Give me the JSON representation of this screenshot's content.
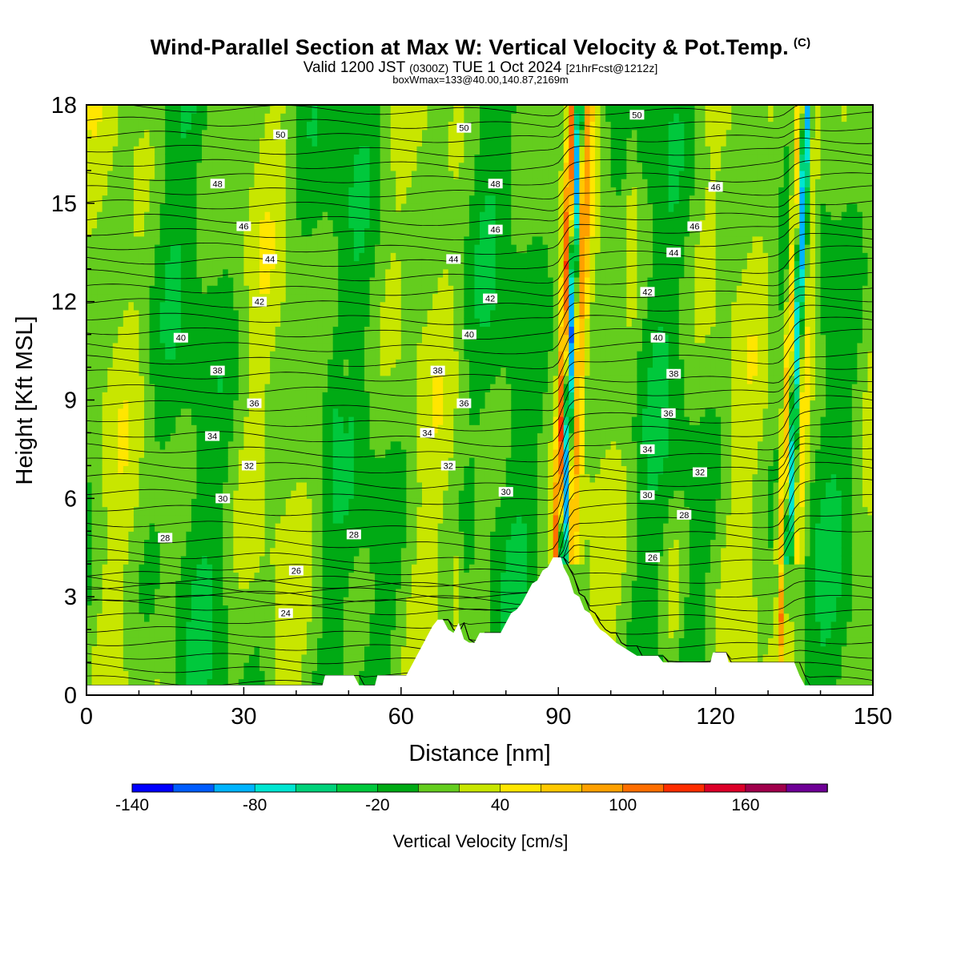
{
  "header": {
    "title": "Wind-Parallel Section at Max W: Vertical Velocity & Pot.Temp.",
    "title_mark": "(C)",
    "valid_prefix": "Valid 1200 JST",
    "valid_utc": "(0300Z)",
    "valid_date": "TUE 1 Oct 2024",
    "forecast": "[21hrFcst@1212z]",
    "box_info": "boxWmax=133@40.00,140.87,2169m"
  },
  "chart_data": {
    "type": "heatmap",
    "xlabel": "Distance [nm]",
    "ylabel": "Height [Kft MSL]",
    "xlim": [
      0,
      150
    ],
    "ylim": [
      0,
      18
    ],
    "x_ticks": [
      "0",
      "30",
      "60",
      "90",
      "120",
      "150"
    ],
    "y_ticks": [
      "0",
      "3",
      "6",
      "9",
      "12",
      "15",
      "18"
    ],
    "x_tick_values": [
      0,
      30,
      60,
      90,
      120,
      150
    ],
    "y_tick_values": [
      0,
      3,
      6,
      9,
      12,
      15,
      18
    ],
    "colorbar": {
      "label": "Vertical Velocity [cm/s]",
      "levels": [
        -140,
        -120,
        -100,
        -80,
        -60,
        -40,
        -20,
        0,
        20,
        40,
        60,
        80,
        100,
        120,
        140,
        160,
        180
      ],
      "colors": [
        "#0000ff",
        "#005cff",
        "#00b4ff",
        "#00e6d2",
        "#00d27a",
        "#00c83c",
        "#00aa14",
        "#64cd1e",
        "#c8e600",
        "#ffe600",
        "#ffc800",
        "#ffa000",
        "#ff6e00",
        "#ff2d00",
        "#dc0028",
        "#a0004b",
        "#6e0096"
      ],
      "tick_labels": [
        "-140",
        "-80",
        "-20",
        "40",
        "100",
        "160"
      ],
      "tick_values": [
        -140,
        -80,
        -20,
        40,
        100,
        160
      ]
    },
    "terrain": [
      [
        0,
        0.3
      ],
      [
        45,
        0.3
      ],
      [
        45.5,
        0.6
      ],
      [
        51,
        0.6
      ],
      [
        52,
        0.3
      ],
      [
        55,
        0.3
      ],
      [
        55.5,
        0.6
      ],
      [
        61,
        0.6
      ],
      [
        62,
        0.9
      ],
      [
        63,
        1.2
      ],
      [
        64,
        1.5
      ],
      [
        65,
        1.8
      ],
      [
        66,
        2.1
      ],
      [
        67,
        2.3
      ],
      [
        68,
        2.3
      ],
      [
        69,
        2.0
      ],
      [
        70,
        1.9
      ],
      [
        71,
        2.2
      ],
      [
        72,
        1.7
      ],
      [
        73,
        1.6
      ],
      [
        74,
        1.6
      ],
      [
        75,
        1.9
      ],
      [
        79,
        1.9
      ],
      [
        80,
        2.2
      ],
      [
        81,
        2.5
      ],
      [
        82,
        2.6
      ],
      [
        83,
        2.8
      ],
      [
        84,
        3.1
      ],
      [
        85,
        3.4
      ],
      [
        86,
        3.5
      ],
      [
        87,
        3.8
      ],
      [
        88,
        3.9
      ],
      [
        89,
        4.2
      ],
      [
        90.5,
        4.2
      ],
      [
        91,
        3.9
      ],
      [
        92,
        3.6
      ],
      [
        93,
        3.1
      ],
      [
        94,
        3.0
      ],
      [
        95,
        2.6
      ],
      [
        96,
        2.5
      ],
      [
        97,
        2.2
      ],
      [
        98,
        2.0
      ],
      [
        99,
        1.9
      ],
      [
        101,
        1.6
      ],
      [
        102,
        1.5
      ],
      [
        105,
        1.2
      ],
      [
        109,
        1.2
      ],
      [
        110,
        1.0
      ],
      [
        119,
        1.0
      ],
      [
        119.5,
        1.3
      ],
      [
        122,
        1.3
      ],
      [
        122.5,
        1.0
      ],
      [
        135,
        1.0
      ],
      [
        136,
        0.6
      ],
      [
        137,
        0.3
      ],
      [
        150,
        0.3
      ]
    ],
    "theta_labels": [
      {
        "v": "50",
        "x": 37,
        "y": 17.1
      },
      {
        "v": "50",
        "x": 72,
        "y": 17.3
      },
      {
        "v": "50",
        "x": 105,
        "y": 17.7
      },
      {
        "v": "48",
        "x": 25,
        "y": 15.6
      },
      {
        "v": "48",
        "x": 78,
        "y": 15.6
      },
      {
        "v": "46",
        "x": 120,
        "y": 15.5
      },
      {
        "v": "46",
        "x": 30,
        "y": 14.3
      },
      {
        "v": "46",
        "x": 78,
        "y": 14.2
      },
      {
        "v": "46",
        "x": 116,
        "y": 14.3
      },
      {
        "v": "44",
        "x": 35,
        "y": 13.3
      },
      {
        "v": "44",
        "x": 70,
        "y": 13.3
      },
      {
        "v": "44",
        "x": 112,
        "y": 13.5
      },
      {
        "v": "42",
        "x": 33,
        "y": 12.0
      },
      {
        "v": "42",
        "x": 77,
        "y": 12.1
      },
      {
        "v": "42",
        "x": 107,
        "y": 12.3
      },
      {
        "v": "40",
        "x": 18,
        "y": 10.9
      },
      {
        "v": "40",
        "x": 73,
        "y": 11.0
      },
      {
        "v": "40",
        "x": 109,
        "y": 10.9
      },
      {
        "v": "38",
        "x": 25,
        "y": 9.9
      },
      {
        "v": "38",
        "x": 67,
        "y": 9.9
      },
      {
        "v": "38",
        "x": 112,
        "y": 9.8
      },
      {
        "v": "36",
        "x": 32,
        "y": 8.9
      },
      {
        "v": "36",
        "x": 72,
        "y": 8.9
      },
      {
        "v": "36",
        "x": 111,
        "y": 8.6
      },
      {
        "v": "34",
        "x": 24,
        "y": 7.9
      },
      {
        "v": "34",
        "x": 65,
        "y": 8.0
      },
      {
        "v": "34",
        "x": 107,
        "y": 7.5
      },
      {
        "v": "32",
        "x": 31,
        "y": 7.0
      },
      {
        "v": "32",
        "x": 69,
        "y": 7.0
      },
      {
        "v": "32",
        "x": 117,
        "y": 6.8
      },
      {
        "v": "30",
        "x": 26,
        "y": 6.0
      },
      {
        "v": "30",
        "x": 80,
        "y": 6.2
      },
      {
        "v": "30",
        "x": 107,
        "y": 6.1
      },
      {
        "v": "28",
        "x": 15,
        "y": 4.8
      },
      {
        "v": "28",
        "x": 51,
        "y": 4.9
      },
      {
        "v": "28",
        "x": 114,
        "y": 5.5
      },
      {
        "v": "26",
        "x": 40,
        "y": 3.8
      },
      {
        "v": "26",
        "x": 108,
        "y": 4.2
      },
      {
        "v": "24",
        "x": 38,
        "y": 2.5
      }
    ]
  }
}
